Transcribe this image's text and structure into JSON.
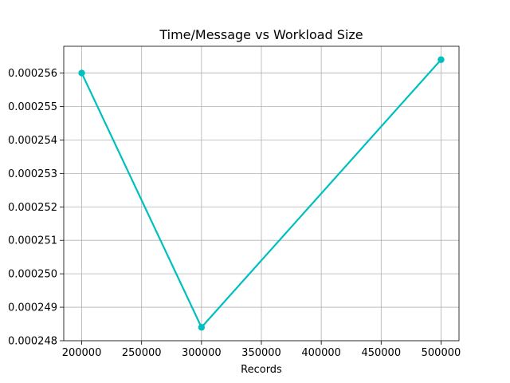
{
  "chart_data": {
    "type": "line",
    "title": "Time/Message vs Workload Size",
    "xlabel": "Records",
    "ylabel": "",
    "x": [
      200000,
      300000,
      500000
    ],
    "series": [
      {
        "values": [
          0.000256,
          0.0002484,
          0.0002564
        ],
        "color": "#00bfbf"
      }
    ],
    "xlim": [
      185000,
      515000
    ],
    "ylim": [
      0.000248,
      0.0002568
    ],
    "xticks": [
      200000,
      250000,
      300000,
      350000,
      400000,
      450000,
      500000
    ],
    "xtick_labels": [
      "200000",
      "250000",
      "300000",
      "350000",
      "400000",
      "450000",
      "500000"
    ],
    "yticks": [
      0.000248,
      0.000249,
      0.00025,
      0.000251,
      0.000252,
      0.000253,
      0.000254,
      0.000255,
      0.000256
    ],
    "ytick_labels": [
      "0.000248",
      "0.000249",
      "0.000250",
      "0.000251",
      "0.000252",
      "0.000253",
      "0.000254",
      "0.000255",
      "0.000256"
    ],
    "grid": true,
    "marker": "circle"
  }
}
